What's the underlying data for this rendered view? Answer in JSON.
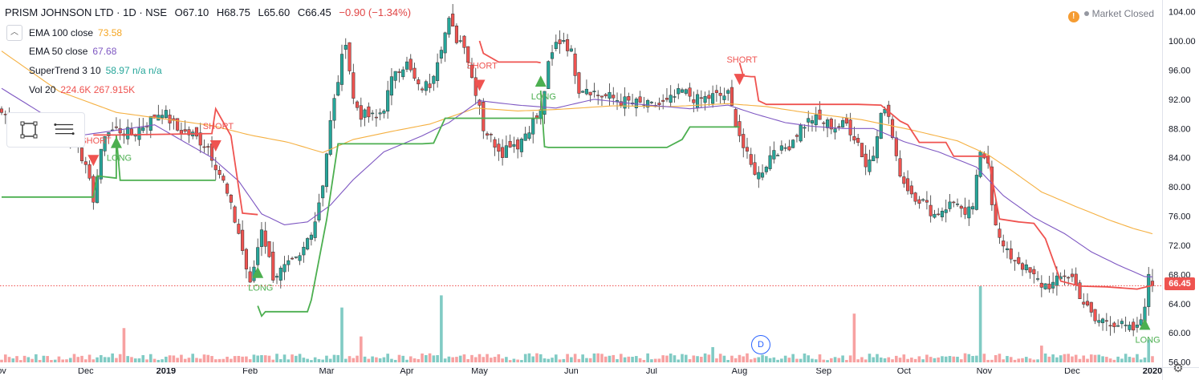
{
  "header": {
    "symbol": "PRISM JOHNSON LTD · 1D · NSE",
    "open": "O67.10",
    "high": "H68.75",
    "low": "L65.60",
    "close": "C66.45",
    "change": "−0.90 (−1.34%)"
  },
  "indicators": [
    {
      "name": "EMA 100 close",
      "value": "73.58",
      "color": "#f5b041"
    },
    {
      "name": "EMA 50 close",
      "value": "67.68",
      "color": "#7e57c2"
    },
    {
      "name": "SuperTrend 3 10",
      "value": "58.97  n/a  n/a",
      "color": "#26a69a"
    },
    {
      "name": "Vol 20",
      "value": "224.6K  267.915K",
      "color": "#ef5350"
    }
  ],
  "status": {
    "text": "Market Closed",
    "warn": "!"
  },
  "last_price": "66.45",
  "d_marker": "D",
  "colors": {
    "up": "#26a69a",
    "down": "#ef5350",
    "ema100": "#f5b041",
    "ema50": "#7e57c2",
    "supertrend_up": "#4caf50",
    "supertrend_down": "#ef5350",
    "vol_up": "#80cbc4",
    "vol_down": "#f7a1a1"
  },
  "chart_data": {
    "type": "candlestick",
    "y_ticks": [
      56,
      60,
      64,
      68,
      72,
      76,
      80,
      84,
      88,
      92,
      96,
      100,
      104
    ],
    "ylim": [
      55.3,
      105.6
    ],
    "x_ticks": [
      {
        "label": "ov",
        "index": 0
      },
      {
        "label": "Dec",
        "index": 22
      },
      {
        "label": "2019",
        "index": 43,
        "bold": true
      },
      {
        "label": "Feb",
        "index": 65
      },
      {
        "label": "Mar",
        "index": 85
      },
      {
        "label": "Apr",
        "index": 106
      },
      {
        "label": "May",
        "index": 125
      },
      {
        "label": "Jun",
        "index": 149
      },
      {
        "label": "Jul",
        "index": 170
      },
      {
        "label": "Aug",
        "index": 193
      },
      {
        "label": "Sep",
        "index": 215
      },
      {
        "label": "Oct",
        "index": 236
      },
      {
        "label": "Nov",
        "index": 257
      },
      {
        "label": "Dec",
        "index": 280
      },
      {
        "label": "2020",
        "index": 301,
        "bold": true
      }
    ],
    "close_anchors": [
      [
        0,
        90.2
      ],
      [
        8,
        87.6
      ],
      [
        14,
        87
      ],
      [
        20,
        86.2
      ],
      [
        24,
        78.5
      ],
      [
        27,
        87.4
      ],
      [
        30,
        87.9
      ],
      [
        34,
        87.2
      ],
      [
        38,
        88.8
      ],
      [
        42,
        90.5
      ],
      [
        46,
        87.8
      ],
      [
        50,
        87.1
      ],
      [
        54,
        85.5
      ],
      [
        58,
        80.6
      ],
      [
        62,
        73.7
      ],
      [
        65,
        66.4
      ],
      [
        68,
        74.5
      ],
      [
        71,
        67.8
      ],
      [
        74,
        68.8
      ],
      [
        78,
        70.2
      ],
      [
        82,
        75.5
      ],
      [
        84,
        80.6
      ],
      [
        86,
        88.8
      ],
      [
        88,
        94.7
      ],
      [
        90,
        100.2
      ],
      [
        92,
        92
      ],
      [
        94,
        89.9
      ],
      [
        98,
        89.4
      ],
      [
        100,
        91
      ],
      [
        103,
        96.2
      ],
      [
        106,
        96.8
      ],
      [
        109,
        93.5
      ],
      [
        112,
        94.1
      ],
      [
        115,
        99.5
      ],
      [
        117,
        102.6
      ],
      [
        119,
        100.3
      ],
      [
        121,
        99.8
      ],
      [
        123,
        95
      ],
      [
        125,
        91.4
      ],
      [
        126,
        88.1
      ],
      [
        129,
        86
      ],
      [
        131,
        84.8
      ],
      [
        133,
        86.1
      ],
      [
        135,
        85.8
      ],
      [
        138,
        88.2
      ],
      [
        141,
        90.2
      ],
      [
        143,
        96.5
      ],
      [
        145,
        99.6
      ],
      [
        147,
        100.3
      ],
      [
        149,
        98.3
      ],
      [
        151,
        93.5
      ],
      [
        153,
        93.7
      ],
      [
        156,
        92.6
      ],
      [
        159,
        92.3
      ],
      [
        162,
        91.8
      ],
      [
        166,
        91.4
      ],
      [
        170,
        91
      ],
      [
        174,
        91.5
      ],
      [
        178,
        93.1
      ],
      [
        182,
        91.9
      ],
      [
        186,
        92.4
      ],
      [
        190,
        92.6
      ],
      [
        192,
        89
      ],
      [
        194,
        85.4
      ],
      [
        196,
        82.8
      ],
      [
        198,
        81.7
      ],
      [
        200,
        83.2
      ],
      [
        202,
        85.3
      ],
      [
        204,
        84.9
      ],
      [
        206,
        85.8
      ],
      [
        209,
        88.2
      ],
      [
        212,
        89.4
      ],
      [
        215,
        88.9
      ],
      [
        218,
        88.2
      ],
      [
        221,
        88.6
      ],
      [
        224,
        86.1
      ],
      [
        226,
        82.9
      ],
      [
        228,
        84.5
      ],
      [
        230,
        90.8
      ],
      [
        232,
        89.7
      ],
      [
        234,
        83.6
      ],
      [
        236,
        80.6
      ],
      [
        238,
        79.2
      ],
      [
        241,
        77.9
      ],
      [
        244,
        76.2
      ],
      [
        247,
        77.3
      ],
      [
        250,
        78.1
      ],
      [
        252,
        75.6
      ],
      [
        254,
        77.5
      ],
      [
        256,
        84.3
      ],
      [
        258,
        83.9
      ],
      [
        259,
        78
      ],
      [
        261,
        72.7
      ],
      [
        263,
        70.8
      ],
      [
        266,
        69.8
      ],
      [
        269,
        68.1
      ],
      [
        272,
        66.6
      ],
      [
        275,
        66.6
      ],
      [
        278,
        68
      ],
      [
        280,
        67.6
      ],
      [
        283,
        64.1
      ],
      [
        286,
        61.6
      ],
      [
        289,
        61.8
      ],
      [
        292,
        61.2
      ],
      [
        295,
        60.4
      ],
      [
        297,
        60.5
      ],
      [
        298,
        61.9
      ],
      [
        299,
        64.2
      ],
      [
        300,
        67.4
      ],
      [
        301,
        66.45
      ]
    ],
    "ema50_anchors": [
      [
        0,
        93.5
      ],
      [
        20,
        87
      ],
      [
        40,
        88.5
      ],
      [
        55,
        84
      ],
      [
        62,
        80.8
      ],
      [
        68,
        76.3
      ],
      [
        74,
        74.8
      ],
      [
        80,
        75.2
      ],
      [
        86,
        77.5
      ],
      [
        92,
        81
      ],
      [
        100,
        84.8
      ],
      [
        110,
        87
      ],
      [
        117,
        88.8
      ],
      [
        125,
        91.8
      ],
      [
        135,
        91.2
      ],
      [
        145,
        90.8
      ],
      [
        155,
        92
      ],
      [
        165,
        91.4
      ],
      [
        180,
        90.7
      ],
      [
        190,
        91.2
      ],
      [
        197,
        90
      ],
      [
        205,
        88.8
      ],
      [
        212,
        88.3
      ],
      [
        220,
        88
      ],
      [
        228,
        88
      ],
      [
        236,
        86.2
      ],
      [
        245,
        84.8
      ],
      [
        255,
        82.7
      ],
      [
        262,
        78.8
      ],
      [
        270,
        75.8
      ],
      [
        278,
        73.6
      ],
      [
        285,
        71.1
      ],
      [
        292,
        69.3
      ],
      [
        299,
        67.7
      ],
      [
        301,
        67.68
      ]
    ],
    "ema100_anchors": [
      [
        0,
        98.6
      ],
      [
        15,
        93.1
      ],
      [
        30,
        90.2
      ],
      [
        44,
        89.2
      ],
      [
        55,
        88.4
      ],
      [
        65,
        87.1
      ],
      [
        75,
        86.1
      ],
      [
        84,
        84.7
      ],
      [
        92,
        86.5
      ],
      [
        102,
        87.6
      ],
      [
        112,
        88.6
      ],
      [
        124,
        90.8
      ],
      [
        135,
        90.4
      ],
      [
        145,
        90.6
      ],
      [
        160,
        91.1
      ],
      [
        175,
        91
      ],
      [
        190,
        91.4
      ],
      [
        200,
        91
      ],
      [
        210,
        90.2
      ],
      [
        225,
        89.2
      ],
      [
        238,
        87.8
      ],
      [
        250,
        86.3
      ],
      [
        258,
        84.4
      ],
      [
        264,
        82.3
      ],
      [
        272,
        79.3
      ],
      [
        281,
        77.3
      ],
      [
        290,
        75.4
      ],
      [
        296,
        74.3
      ],
      [
        301,
        73.58
      ]
    ],
    "supertrend": [
      {
        "trend": "up",
        "points": [
          [
            0,
            78.6
          ],
          [
            24,
            78.6
          ],
          [
            25,
            81.5
          ],
          [
            30,
            81.2
          ],
          [
            30,
            87.1
          ],
          [
            31,
            80.9
          ],
          [
            56,
            80.9
          ]
        ]
      },
      {
        "trend": "down",
        "points": [
          [
            24,
            87.1
          ],
          [
            29,
            87.1
          ],
          [
            30,
            87.1
          ],
          [
            55,
            87.3
          ],
          [
            56,
            90.7
          ],
          [
            60,
            87
          ],
          [
            63,
            76.4
          ],
          [
            67,
            76.2
          ]
        ]
      },
      {
        "trend": "up",
        "points": [
          [
            67,
            63.7
          ],
          [
            68,
            62.3
          ],
          [
            69,
            62.9
          ],
          [
            80,
            62.9
          ],
          [
            81,
            64.5
          ],
          [
            85,
            75.5
          ],
          [
            88,
            85.9
          ],
          [
            110,
            85.9
          ],
          [
            113,
            86
          ],
          [
            116,
            89.4
          ],
          [
            129,
            89.4
          ],
          [
            133,
            89.4
          ],
          [
            138,
            89.4
          ],
          [
            141,
            89.4
          ]
        ]
      },
      {
        "trend": "down",
        "points": [
          [
            125,
            100
          ],
          [
            126,
            98.3
          ],
          [
            130,
            97.1
          ],
          [
            140,
            97.1
          ],
          [
            141,
            97
          ]
        ]
      },
      {
        "trend": "up",
        "points": [
          [
            141,
            93.2
          ],
          [
            142,
            85.5
          ],
          [
            143,
            85.4
          ],
          [
            174,
            85.4
          ],
          [
            178,
            86.5
          ],
          [
            180,
            88.2
          ],
          [
            193,
            88.2
          ]
        ]
      },
      {
        "trend": "down",
        "points": [
          [
            193,
            97
          ],
          [
            194,
            95.2
          ],
          [
            196,
            95.1
          ],
          [
            197,
            95.1
          ],
          [
            198,
            91.8
          ],
          [
            200,
            91.3
          ],
          [
            224,
            91.3
          ],
          [
            230,
            91.2
          ],
          [
            235,
            89
          ],
          [
            237,
            88.5
          ],
          [
            240,
            86.1
          ],
          [
            247,
            86.1
          ],
          [
            249,
            84.2
          ],
          [
            258,
            84.2
          ],
          [
            261,
            75.6
          ],
          [
            266,
            75.2
          ],
          [
            270,
            75
          ],
          [
            273,
            72.9
          ],
          [
            277,
            67.1
          ],
          [
            282,
            66.4
          ],
          [
            289,
            66.3
          ],
          [
            297,
            66
          ],
          [
            301,
            66.5
          ]
        ]
      }
    ],
    "signals": [
      {
        "type": "SHORT",
        "index": 24,
        "price": 83.5,
        "text": "SHORT"
      },
      {
        "type": "LONG",
        "index": 30,
        "price": 86.2,
        "text": "LONG"
      },
      {
        "type": "SHORT",
        "index": 56,
        "price": 85.5,
        "text": "SHORT"
      },
      {
        "type": "LONG",
        "index": 67,
        "price": 68.4,
        "text": "LONG"
      },
      {
        "type": "SHORT",
        "index": 125,
        "price": 93.8,
        "text": "SHORT"
      },
      {
        "type": "LONG",
        "index": 141,
        "price": 94.6,
        "text": "LONG"
      },
      {
        "type": "SHORT",
        "index": 193,
        "price": 94.6,
        "text": "SHORT"
      },
      {
        "type": "LONG",
        "index": 299,
        "price": 61.3,
        "text": "LONG"
      }
    ],
    "volume_spikes": [
      [
        32,
        0.45
      ],
      [
        89,
        0.72
      ],
      [
        94,
        0.34
      ],
      [
        115,
        0.88
      ],
      [
        186,
        0.2
      ],
      [
        223,
        0.64
      ],
      [
        256,
        1.0
      ],
      [
        272,
        0.22
      ],
      [
        300,
        0.3
      ]
    ],
    "last_price": 66.45,
    "n_bars": 302
  }
}
